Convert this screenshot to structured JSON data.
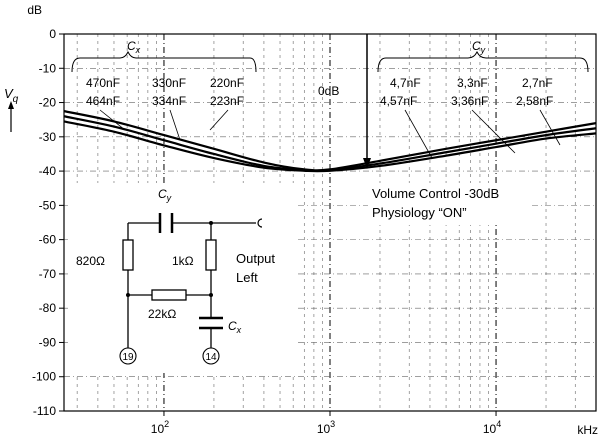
{
  "chart_data": {
    "type": "line",
    "ylabel": "V",
    "ylabel_sub": "q",
    "yunit": "dB",
    "xunit": "kHz",
    "xscale": "log",
    "xlim": [
      25,
      40000
    ],
    "ylim": [
      -110,
      0
    ],
    "yticks": [
      0,
      -10,
      -20,
      -30,
      -40,
      -50,
      -60,
      -70,
      -80,
      -90,
      -100,
      -110
    ],
    "ytick_labels": [
      "0",
      "-10",
      "-20",
      "-30",
      "-40",
      "-50",
      "-60",
      "-70",
      "-80",
      "-90",
      "-100",
      "-110"
    ],
    "xticks": [
      {
        "base": "10",
        "exp": "2"
      },
      {
        "base": "10",
        "exp": "3"
      },
      {
        "base": "10",
        "exp": "4"
      }
    ],
    "grid": true,
    "series": [
      {
        "values_at": [
          25,
          50,
          100,
          200,
          400,
          700,
          1000,
          2000,
          5000,
          10000,
          20000,
          40000
        ],
        "values": [
          -22.5,
          -25.5,
          -29.5,
          -33.5,
          -37.5,
          -39.5,
          -39.5,
          -37,
          -33.5,
          -31,
          -28.5,
          -26
        ]
      },
      {
        "values_at": [
          25,
          50,
          100,
          200,
          400,
          700,
          1000,
          2000,
          5000,
          10000,
          20000,
          40000
        ],
        "values": [
          -24,
          -27,
          -31,
          -35,
          -38.5,
          -39.7,
          -39.7,
          -37.8,
          -34.5,
          -32,
          -29.5,
          -27.5
        ]
      },
      {
        "values_at": [
          25,
          50,
          100,
          200,
          400,
          700,
          1000,
          2000,
          5000,
          10000,
          20000,
          40000
        ],
        "values": [
          -25.5,
          -28.5,
          -32.5,
          -36.2,
          -39,
          -39.9,
          -39.9,
          -38.5,
          -35.5,
          -33,
          -30.5,
          -29
        ]
      }
    ],
    "annotations": {
      "cx_label": "C",
      "cx_sub": "x",
      "cy_label": "C",
      "cy_sub": "y",
      "left_row1": [
        "470nF",
        "330nF",
        "220nF"
      ],
      "left_row2": [
        "464nF",
        "334nF",
        "223nF"
      ],
      "right_row1": [
        "4,7nF",
        "3,3nF",
        "2,7nF"
      ],
      "right_row2": [
        "4,57nF",
        "3,36nF",
        "2,58nF"
      ],
      "zero_db": "0dB",
      "condition_line1": "Volume Control -30dB",
      "condition_line2": "Physiology “ON”"
    },
    "schematic": {
      "cap_top_label": "C",
      "cap_top_sub": "y",
      "cap_bottom_label": "C",
      "cap_bottom_sub": "x",
      "r_left": "820Ω",
      "r_right": "1kΩ",
      "r_middle": "22kΩ",
      "output_line1": "Output",
      "output_line2": "Left",
      "pin_left": "19",
      "pin_right": "14"
    }
  },
  "colors": {
    "line": "#000000",
    "grid": "#666666",
    "background": "#ffffff"
  }
}
